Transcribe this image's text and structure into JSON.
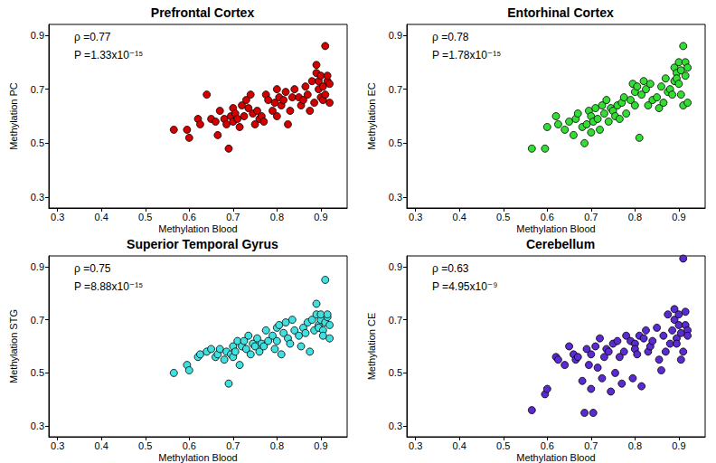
{
  "chart_data": [
    {
      "type": "scatter",
      "title": "Prefrontal Cortex",
      "xlabel": "Methylation Blood",
      "ylabel": "Methylation PC",
      "annotations": [
        "ρ =0.77",
        "P =1.33x10⁻¹⁵"
      ],
      "color": "#d40000",
      "xlim": [
        0.28,
        0.96
      ],
      "ylim": [
        0.26,
        0.94
      ],
      "xticks": [
        0.3,
        0.4,
        0.5,
        0.6,
        0.7,
        0.8,
        0.9
      ],
      "yticks": [
        0.3,
        0.5,
        0.7,
        0.9
      ],
      "x": [
        0.565,
        0.595,
        0.6,
        0.62,
        0.625,
        0.64,
        0.65,
        0.66,
        0.665,
        0.67,
        0.68,
        0.685,
        0.69,
        0.695,
        0.7,
        0.7,
        0.705,
        0.71,
        0.715,
        0.72,
        0.725,
        0.73,
        0.735,
        0.74,
        0.745,
        0.75,
        0.755,
        0.76,
        0.765,
        0.77,
        0.775,
        0.78,
        0.79,
        0.795,
        0.8,
        0.8,
        0.805,
        0.81,
        0.815,
        0.82,
        0.825,
        0.83,
        0.835,
        0.84,
        0.85,
        0.855,
        0.86,
        0.865,
        0.87,
        0.875,
        0.88,
        0.885,
        0.89,
        0.89,
        0.895,
        0.895,
        0.9,
        0.9,
        0.905,
        0.905,
        0.91,
        0.91,
        0.915,
        0.915,
        0.92,
        0.92
      ],
      "values": [
        0.55,
        0.55,
        0.52,
        0.59,
        0.57,
        0.68,
        0.59,
        0.58,
        0.53,
        0.62,
        0.59,
        0.57,
        0.48,
        0.6,
        0.63,
        0.58,
        0.61,
        0.59,
        0.56,
        0.64,
        0.6,
        0.66,
        0.63,
        0.68,
        0.61,
        0.57,
        0.62,
        0.59,
        0.6,
        0.58,
        0.68,
        0.66,
        0.62,
        0.65,
        0.7,
        0.6,
        0.67,
        0.64,
        0.66,
        0.69,
        0.57,
        0.62,
        0.67,
        0.7,
        0.67,
        0.64,
        0.66,
        0.71,
        0.68,
        0.62,
        0.73,
        0.65,
        0.76,
        0.79,
        0.7,
        0.73,
        0.67,
        0.75,
        0.71,
        0.66,
        0.86,
        0.68,
        0.73,
        0.75,
        0.65,
        0.72
      ]
    },
    {
      "type": "scatter",
      "title": "Entorhinal Cortex",
      "xlabel": "Methylation Blood",
      "ylabel": "Methylation EC",
      "annotations": [
        "ρ =0.78",
        "P =1.78x10⁻¹⁵"
      ],
      "color": "#33dd33",
      "xlim": [
        0.28,
        0.96
      ],
      "ylim": [
        0.26,
        0.94
      ],
      "xticks": [
        0.3,
        0.4,
        0.5,
        0.6,
        0.7,
        0.8,
        0.9
      ],
      "yticks": [
        0.3,
        0.5,
        0.7,
        0.9
      ],
      "x": [
        0.565,
        0.595,
        0.6,
        0.62,
        0.625,
        0.64,
        0.65,
        0.66,
        0.665,
        0.67,
        0.68,
        0.685,
        0.69,
        0.695,
        0.7,
        0.7,
        0.705,
        0.71,
        0.715,
        0.72,
        0.725,
        0.73,
        0.735,
        0.74,
        0.745,
        0.75,
        0.755,
        0.76,
        0.765,
        0.77,
        0.775,
        0.78,
        0.79,
        0.795,
        0.8,
        0.8,
        0.805,
        0.81,
        0.815,
        0.82,
        0.825,
        0.83,
        0.835,
        0.84,
        0.85,
        0.855,
        0.86,
        0.865,
        0.87,
        0.875,
        0.88,
        0.885,
        0.89,
        0.89,
        0.895,
        0.895,
        0.9,
        0.9,
        0.905,
        0.905,
        0.91,
        0.91,
        0.915,
        0.915,
        0.92,
        0.92
      ],
      "values": [
        0.48,
        0.48,
        0.56,
        0.6,
        0.57,
        0.55,
        0.58,
        0.53,
        0.59,
        0.61,
        0.56,
        0.5,
        0.57,
        0.62,
        0.6,
        0.54,
        0.58,
        0.63,
        0.59,
        0.55,
        0.64,
        0.61,
        0.66,
        0.58,
        0.63,
        0.62,
        0.6,
        0.64,
        0.59,
        0.65,
        0.67,
        0.61,
        0.66,
        0.72,
        0.69,
        0.64,
        0.71,
        0.52,
        0.68,
        0.73,
        0.7,
        0.64,
        0.72,
        0.66,
        0.67,
        0.63,
        0.71,
        0.65,
        0.74,
        0.69,
        0.7,
        0.68,
        0.78,
        0.73,
        0.76,
        0.74,
        0.8,
        0.72,
        0.77,
        0.68,
        0.86,
        0.64,
        0.8,
        0.75,
        0.65,
        0.78
      ]
    },
    {
      "type": "scatter",
      "title": "Superior Temporal Gyrus",
      "xlabel": "Methylation Blood",
      "ylabel": "Methylation STG",
      "annotations": [
        "ρ =0.75",
        "P =8.88x10⁻¹⁵"
      ],
      "color": "#40e0e0",
      "xlim": [
        0.28,
        0.96
      ],
      "ylim": [
        0.26,
        0.94
      ],
      "xticks": [
        0.3,
        0.4,
        0.5,
        0.6,
        0.7,
        0.8,
        0.9
      ],
      "yticks": [
        0.3,
        0.5,
        0.7,
        0.9
      ],
      "x": [
        0.565,
        0.595,
        0.6,
        0.62,
        0.625,
        0.64,
        0.65,
        0.66,
        0.665,
        0.67,
        0.68,
        0.685,
        0.69,
        0.695,
        0.7,
        0.7,
        0.705,
        0.71,
        0.715,
        0.72,
        0.725,
        0.73,
        0.735,
        0.74,
        0.745,
        0.75,
        0.755,
        0.76,
        0.765,
        0.77,
        0.775,
        0.78,
        0.79,
        0.795,
        0.8,
        0.8,
        0.805,
        0.81,
        0.815,
        0.82,
        0.825,
        0.83,
        0.835,
        0.84,
        0.85,
        0.855,
        0.86,
        0.865,
        0.87,
        0.875,
        0.88,
        0.885,
        0.89,
        0.89,
        0.895,
        0.895,
        0.9,
        0.9,
        0.905,
        0.905,
        0.91,
        0.91,
        0.915,
        0.915,
        0.92,
        0.92
      ],
      "values": [
        0.5,
        0.53,
        0.51,
        0.56,
        0.57,
        0.58,
        0.59,
        0.56,
        0.57,
        0.59,
        0.55,
        0.58,
        0.46,
        0.57,
        0.6,
        0.56,
        0.58,
        0.62,
        0.53,
        0.6,
        0.62,
        0.59,
        0.64,
        0.57,
        0.61,
        0.6,
        0.63,
        0.58,
        0.61,
        0.6,
        0.66,
        0.62,
        0.64,
        0.59,
        0.67,
        0.62,
        0.68,
        0.57,
        0.65,
        0.69,
        0.63,
        0.61,
        0.7,
        0.66,
        0.64,
        0.6,
        0.67,
        0.65,
        0.69,
        0.58,
        0.7,
        0.66,
        0.72,
        0.76,
        0.68,
        0.67,
        0.7,
        0.72,
        0.66,
        0.64,
        0.85,
        0.69,
        0.71,
        0.72,
        0.63,
        0.68
      ]
    },
    {
      "type": "scatter",
      "title": "Cerebellum",
      "xlabel": "Methylation Blood",
      "ylabel": "Methylation CE",
      "annotations": [
        "ρ =0.63",
        "P =4.95x10⁻⁹"
      ],
      "color": "#5a2bd0",
      "xlim": [
        0.28,
        0.96
      ],
      "ylim": [
        0.26,
        0.94
      ],
      "xticks": [
        0.3,
        0.4,
        0.5,
        0.6,
        0.7,
        0.8,
        0.9
      ],
      "yticks": [
        0.3,
        0.5,
        0.7,
        0.9
      ],
      "x": [
        0.565,
        0.595,
        0.6,
        0.62,
        0.625,
        0.64,
        0.65,
        0.66,
        0.665,
        0.67,
        0.68,
        0.685,
        0.69,
        0.695,
        0.7,
        0.7,
        0.705,
        0.71,
        0.715,
        0.72,
        0.725,
        0.73,
        0.735,
        0.74,
        0.745,
        0.75,
        0.755,
        0.76,
        0.765,
        0.77,
        0.775,
        0.78,
        0.79,
        0.795,
        0.8,
        0.8,
        0.805,
        0.81,
        0.815,
        0.82,
        0.825,
        0.83,
        0.835,
        0.84,
        0.85,
        0.855,
        0.86,
        0.865,
        0.87,
        0.875,
        0.88,
        0.885,
        0.89,
        0.89,
        0.895,
        0.895,
        0.9,
        0.9,
        0.905,
        0.905,
        0.91,
        0.91,
        0.915,
        0.915,
        0.92,
        0.92
      ],
      "values": [
        0.36,
        0.42,
        0.44,
        0.56,
        0.55,
        0.53,
        0.6,
        0.57,
        0.55,
        0.56,
        0.47,
        0.35,
        0.59,
        0.53,
        0.57,
        0.44,
        0.35,
        0.6,
        0.52,
        0.63,
        0.48,
        0.56,
        0.59,
        0.58,
        0.43,
        0.61,
        0.5,
        0.62,
        0.56,
        0.46,
        0.58,
        0.64,
        0.62,
        0.48,
        0.61,
        0.59,
        0.57,
        0.64,
        0.45,
        0.63,
        0.66,
        0.58,
        0.6,
        0.62,
        0.67,
        0.55,
        0.51,
        0.64,
        0.58,
        0.72,
        0.61,
        0.66,
        0.7,
        0.74,
        0.63,
        0.61,
        0.68,
        0.72,
        0.65,
        0.55,
        0.93,
        0.58,
        0.68,
        0.73,
        0.66,
        0.64
      ]
    }
  ]
}
